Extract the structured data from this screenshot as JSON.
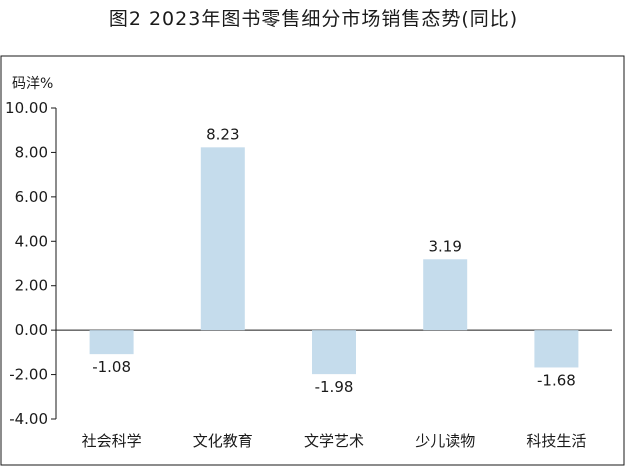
{
  "chart_data": {
    "type": "bar",
    "title": "图2  2023年图书零售细分市场销售态势(同比)",
    "ylabel": "码洋%",
    "categories": [
      "社会科学",
      "文化教育",
      "文学艺术",
      "少儿读物",
      "科技生活"
    ],
    "values": [
      -1.08,
      8.23,
      -1.98,
      3.19,
      -1.68
    ],
    "data_labels": [
      "-1.08",
      "8.23",
      "-1.98",
      "3.19",
      "-1.68"
    ],
    "ylim": [
      -4,
      10
    ],
    "yticks": [
      10,
      8,
      6,
      4,
      2,
      0,
      -2,
      -4
    ],
    "ytick_labels": [
      "10.00",
      "8.00",
      "6.00",
      "4.00",
      "2.00",
      "0.00",
      "-2.00",
      "-4.00"
    ],
    "bar_color": "#c5dcec",
    "grid": false,
    "legend": false
  }
}
